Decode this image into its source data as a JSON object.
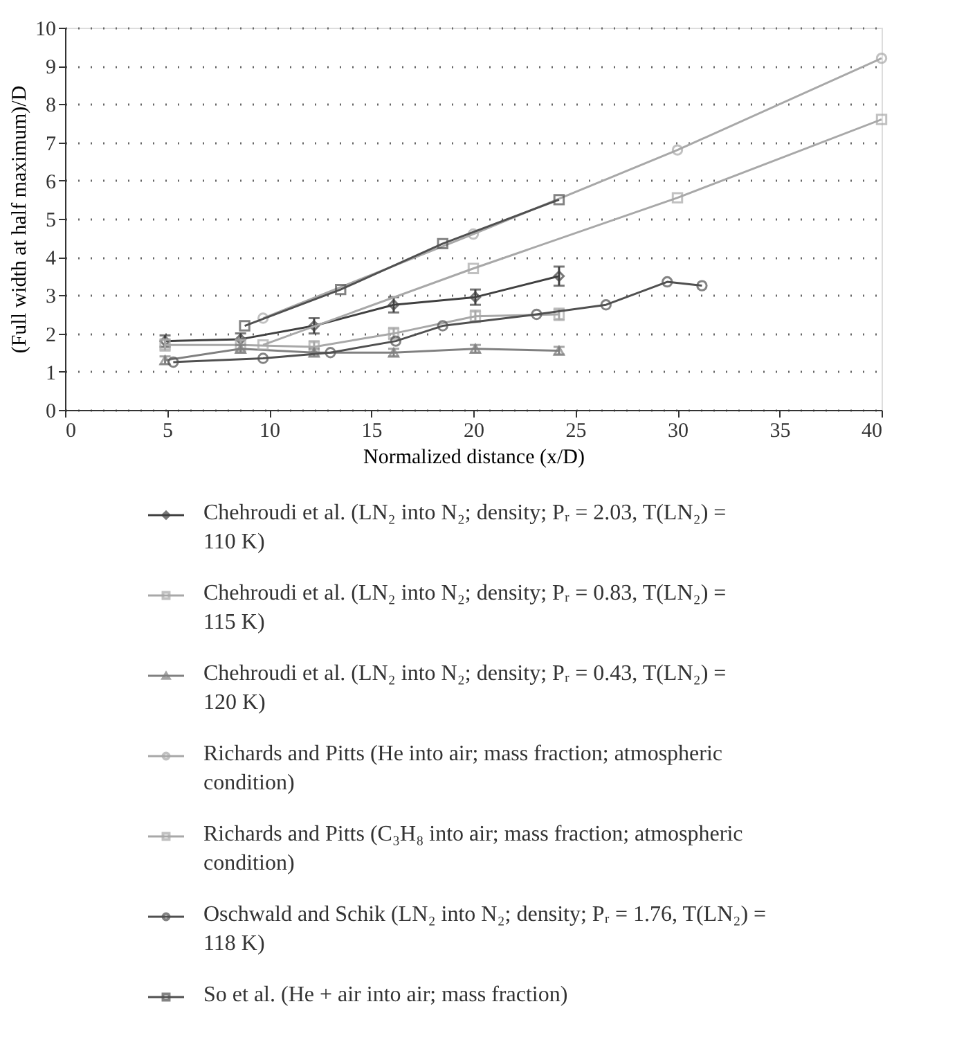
{
  "chart_data": {
    "type": "line",
    "xlabel": "Normalized distance (x/D)",
    "ylabel": "(Full width at half maximum)/D",
    "xlim": [
      0,
      40
    ],
    "xticks": [
      0,
      5,
      10,
      15,
      20,
      25,
      30,
      35,
      40
    ],
    "ylim": [
      0,
      10
    ],
    "yticks": [
      0,
      1,
      2,
      3,
      4,
      5,
      6,
      7,
      8,
      9,
      10
    ],
    "grid": "y",
    "legend": "bottom",
    "series": [
      {
        "name": "Chehroudi et al. (LN₂ into N₂; density; Pᵣ = 2.03, T(LN₂) = 110 K)",
        "color": "#404040",
        "marker": "diamond",
        "x": [
          4.9,
          8.6,
          12.2,
          16.1,
          20.1,
          24.2
        ],
        "values": [
          1.8,
          1.85,
          2.2,
          2.75,
          2.95,
          3.5
        ],
        "errors": [
          0.15,
          0.15,
          0.2,
          0.2,
          0.2,
          0.25
        ]
      },
      {
        "name": "Chehroudi et al. (LN₂ into N₂; density; Pᵣ = 0.83, T(LN₂) = 115 K)",
        "color": "#a8a8a8",
        "marker": "square",
        "x": [
          4.9,
          8.6,
          12.2,
          16.1,
          20.1,
          24.2
        ],
        "values": [
          1.7,
          1.7,
          1.65,
          2.0,
          2.45,
          2.5
        ],
        "errors": [
          0.15,
          0.15,
          0.15,
          0.15,
          0.15,
          0.15
        ]
      },
      {
        "name": "Chehroudi et al. (LN₂ into N₂; density; Pᵣ = 0.43, T(LN₂) = 120 K)",
        "color": "#808080",
        "marker": "triangle",
        "x": [
          4.9,
          8.6,
          12.2,
          16.1,
          20.1,
          24.2
        ],
        "values": [
          1.3,
          1.6,
          1.5,
          1.5,
          1.6,
          1.55
        ],
        "errors": [
          0.1,
          0.1,
          0.1,
          0.1,
          0.1,
          0.1
        ]
      },
      {
        "name": "Richards and Pitts (He into air; mass fraction; atmospheric condition)",
        "color": "#a8a8a8",
        "marker": "circle",
        "x": [
          9.7,
          20,
          30,
          40
        ],
        "values": [
          2.4,
          4.6,
          6.8,
          9.2
        ]
      },
      {
        "name": "Richards and Pitts (C₃H₈ into air; mass fraction; atmospheric condition)",
        "color": "#a8a8a8",
        "marker": "square",
        "x": [
          9.7,
          20,
          30,
          40
        ],
        "values": [
          1.7,
          3.7,
          5.55,
          7.6
        ]
      },
      {
        "name": "Oschwald and Schik (LN₂ into N₂; density; Pᵣ = 1.76, T(LN₂) = 118 K)",
        "color": "#505050",
        "marker": "circle",
        "x": [
          5.3,
          9.7,
          13.0,
          16.2,
          18.5,
          23.1,
          26.5,
          29.5,
          31.2
        ],
        "values": [
          1.25,
          1.35,
          1.5,
          1.8,
          2.2,
          2.5,
          2.75,
          3.35,
          3.25
        ]
      },
      {
        "name": "So et al. (He + air into air; mass fraction)",
        "color": "#505050",
        "marker": "square",
        "x": [
          8.8,
          13.5,
          18.5,
          24.2
        ],
        "values": [
          2.2,
          3.15,
          4.35,
          5.5
        ]
      }
    ]
  }
}
